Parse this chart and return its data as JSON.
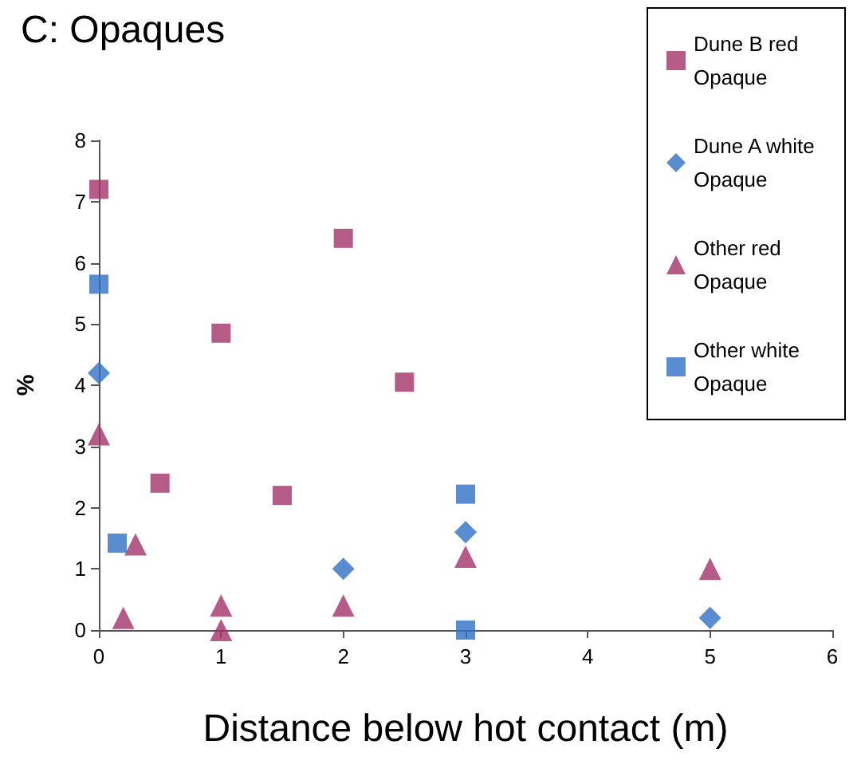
{
  "chart_data": {
    "type": "scatter",
    "title": "C: Opaques",
    "xlabel": "Distance below hot contact (m)",
    "ylabel": "%",
    "xlim": [
      0,
      6
    ],
    "xticks": [
      0,
      1,
      2,
      3,
      4,
      5,
      6
    ],
    "ylim": [
      0,
      8
    ],
    "yticks": [
      0,
      1,
      2,
      3,
      4,
      5,
      6,
      7,
      8
    ],
    "grid": false,
    "legend": "top right",
    "series": [
      {
        "name": "Dune B red Opaque",
        "color": "#a3326a",
        "marker": "square",
        "x": [
          0,
          0.5,
          1,
          1.5,
          2,
          2.5
        ],
        "values": [
          7.2,
          2.4,
          4.85,
          2.2,
          6.4,
          4.05
        ]
      },
      {
        "name": "Dune A white Opaque",
        "color": "#2f6fc4",
        "marker": "diamond",
        "x": [
          0,
          2,
          3,
          5
        ],
        "values": [
          4.2,
          1.0,
          1.6,
          0.2
        ]
      },
      {
        "name": "Other red Opaque",
        "color": "#a3326a",
        "marker": "triangle",
        "x": [
          0,
          0.2,
          0.3,
          1,
          1,
          2,
          3,
          5
        ],
        "values": [
          3.2,
          0.2,
          1.4,
          0.4,
          0,
          0.4,
          1.2,
          1.0
        ]
      },
      {
        "name": "Other white Opaque",
        "color": "#2f6fc4",
        "marker": "square",
        "x": [
          0,
          0.15,
          3,
          3
        ],
        "values": [
          5.65,
          1.42,
          2.22,
          0
        ]
      }
    ]
  }
}
